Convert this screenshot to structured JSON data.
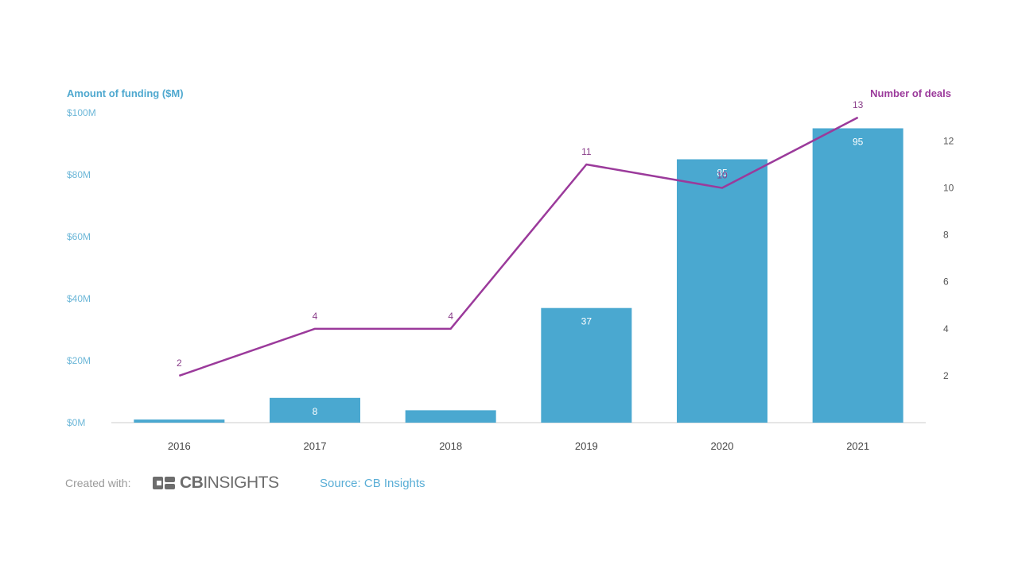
{
  "chart_data": {
    "type": "bar",
    "categories": [
      "2016",
      "2017",
      "2018",
      "2019",
      "2020",
      "2021"
    ],
    "series": [
      {
        "name": "Amount of funding ($M)",
        "type": "bar",
        "axis": "left",
        "values": [
          1,
          8,
          4,
          37,
          85,
          95
        ],
        "labels": [
          "",
          "8",
          "",
          "37",
          "85",
          "95"
        ]
      },
      {
        "name": "Number of deals",
        "type": "line",
        "axis": "right",
        "values": [
          2,
          4,
          4,
          11,
          10,
          13
        ],
        "labels": [
          "2",
          "4",
          "4",
          "11",
          "10",
          "13"
        ]
      }
    ],
    "ylabel_left": "Amount of funding ($M)",
    "ylabel_right": "Number of deals",
    "ylim_left": [
      0,
      100
    ],
    "yticks_left": [
      "$0M",
      "$20M",
      "$40M",
      "$60M",
      "$80M",
      "$100M"
    ],
    "ylim_right": [
      0,
      13.2
    ],
    "yticks_right": [
      "2",
      "4",
      "6",
      "8",
      "10",
      "12"
    ],
    "bar_color": "#4aa8d0",
    "line_color": "#9b3a9b",
    "grid": false
  },
  "footer": {
    "created_with": "Created with:",
    "logo_bold": "CB",
    "logo_rest": "INSIGHTS",
    "source": "Source: CB Insights"
  },
  "icons": {
    "logo": "cb-insights-logo-icon"
  }
}
